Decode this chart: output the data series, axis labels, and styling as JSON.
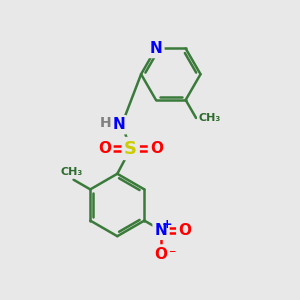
{
  "bg_color": "#e8e8e8",
  "bond_color": "#3a7a3a",
  "bond_width": 1.8,
  "atom_colors": {
    "N": "#0000ff",
    "O": "#ff0000",
    "S": "#cccc00",
    "H": "#808080",
    "C": "#2d6b2d"
  },
  "font_size": 10,
  "figsize": [
    3.0,
    3.0
  ],
  "dpi": 100,
  "xlim": [
    0,
    10
  ],
  "ylim": [
    0,
    10
  ]
}
